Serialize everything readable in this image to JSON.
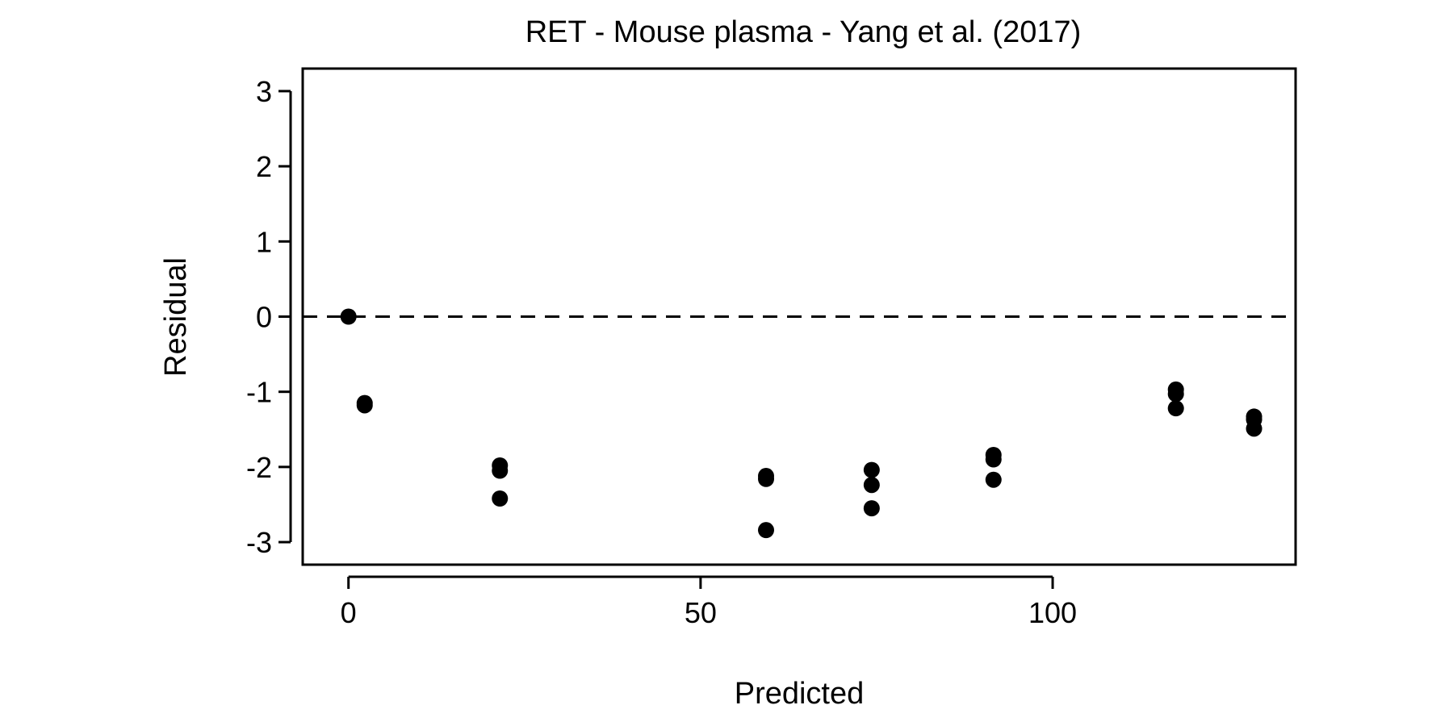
{
  "chart_data": {
    "type": "scatter",
    "title": "RET - Mouse plasma - Yang et al. (2017)",
    "xlabel": "Predicted",
    "ylabel": "Residual",
    "xlim": [
      -6.5,
      134.5
    ],
    "ylim": [
      -3.3,
      3.3
    ],
    "xticks": [
      {
        "value": 0,
        "label": "0"
      },
      {
        "value": 50,
        "label": "50"
      },
      {
        "value": 100,
        "label": "100"
      }
    ],
    "yticks": [
      {
        "value": 3,
        "label": "3"
      },
      {
        "value": 2,
        "label": "2"
      },
      {
        "value": 1,
        "label": "1"
      },
      {
        "value": 0,
        "label": "0"
      },
      {
        "value": -1,
        "label": "-1"
      },
      {
        "value": -2,
        "label": "-2"
      },
      {
        "value": -3,
        "label": "-3"
      }
    ],
    "reference_line": {
      "y": 0,
      "style": "dashed"
    },
    "grid": false,
    "points": [
      {
        "x": 0.0,
        "y": 0.0
      },
      {
        "x": 2.3,
        "y": -1.15
      },
      {
        "x": 2.3,
        "y": -1.18
      },
      {
        "x": 21.5,
        "y": -1.98
      },
      {
        "x": 21.5,
        "y": -2.05
      },
      {
        "x": 21.5,
        "y": -2.42
      },
      {
        "x": 59.3,
        "y": -2.12
      },
      {
        "x": 59.3,
        "y": -2.16
      },
      {
        "x": 59.3,
        "y": -2.84
      },
      {
        "x": 74.3,
        "y": -2.04
      },
      {
        "x": 74.3,
        "y": -2.24
      },
      {
        "x": 74.3,
        "y": -2.55
      },
      {
        "x": 91.6,
        "y": -1.84
      },
      {
        "x": 91.6,
        "y": -1.9
      },
      {
        "x": 91.6,
        "y": -2.17
      },
      {
        "x": 117.5,
        "y": -0.97
      },
      {
        "x": 117.5,
        "y": -1.03
      },
      {
        "x": 117.5,
        "y": -1.22
      },
      {
        "x": 128.6,
        "y": -1.33
      },
      {
        "x": 128.6,
        "y": -1.37
      },
      {
        "x": 128.6,
        "y": -1.49
      }
    ],
    "point_color": "#000000"
  }
}
